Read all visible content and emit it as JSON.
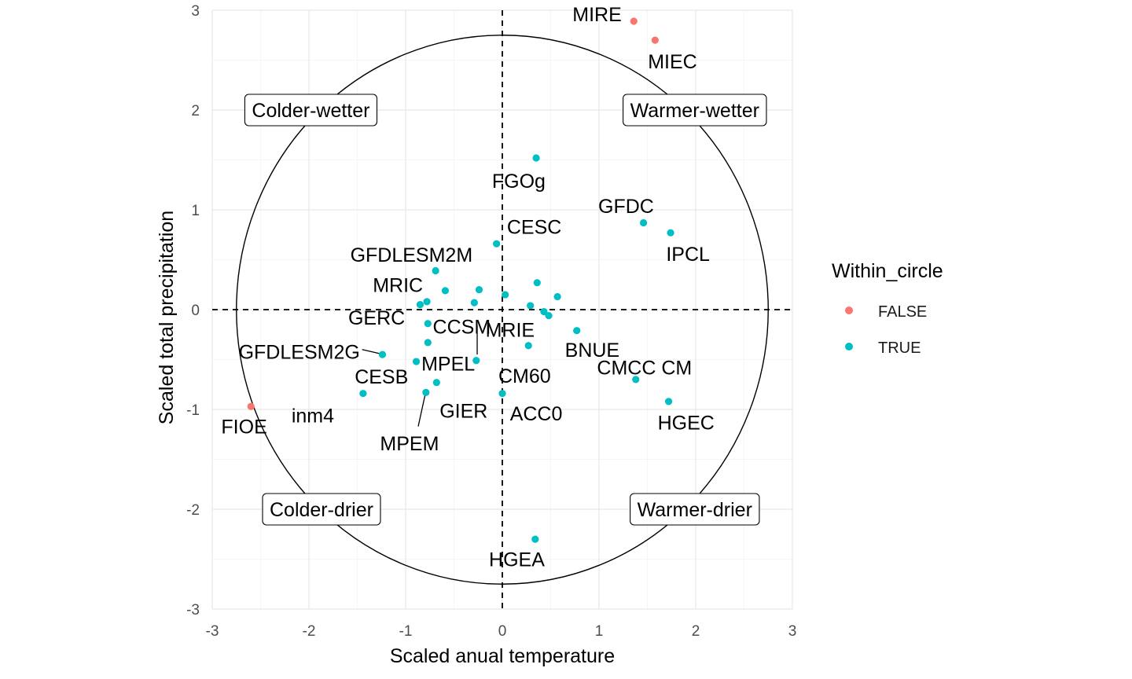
{
  "chart_data": {
    "type": "scatter",
    "xlabel": "Scaled anual temperature",
    "ylabel": "Scaled total precipitation",
    "xlim": [
      -3,
      3
    ],
    "ylim": [
      -3,
      3
    ],
    "x_ticks": [
      "-3",
      "-2",
      "-1",
      "0",
      "1",
      "2",
      "3"
    ],
    "y_ticks": [
      "-3",
      "-2",
      "-1",
      "0",
      "1",
      "2",
      "3"
    ],
    "grid": true,
    "circle_radius": 2.75,
    "reference_lines": [
      "x = 0 (dashed)",
      "y = 0 (dashed)"
    ],
    "quadrant_labels": [
      {
        "text": "Colder-wetter",
        "x": -1.98,
        "y": 2.0
      },
      {
        "text": "Warmer-wetter",
        "x": 1.99,
        "y": 2.0
      },
      {
        "text": "Colder-drier",
        "x": -1.87,
        "y": -2.0
      },
      {
        "text": "Warmer-drier",
        "x": 1.99,
        "y": -2.0
      }
    ],
    "legend": {
      "title": "Within_circle",
      "position": "right",
      "entries": [
        {
          "label": "FALSE",
          "color": "#F8766D"
        },
        {
          "label": "TRUE",
          "color": "#00BFC4"
        }
      ]
    },
    "series": [
      {
        "name": "FALSE",
        "color": "#F8766D",
        "points": [
          {
            "x": 1.36,
            "y": 2.89
          },
          {
            "x": 1.58,
            "y": 2.7
          },
          {
            "x": -2.6,
            "y": -0.97
          }
        ]
      },
      {
        "name": "TRUE",
        "color": "#00BFC4",
        "points": [
          {
            "x": 0.35,
            "y": 1.52
          },
          {
            "x": 1.46,
            "y": 0.87
          },
          {
            "x": 1.74,
            "y": 0.77
          },
          {
            "x": -0.06,
            "y": 0.66
          },
          {
            "x": -0.69,
            "y": 0.39
          },
          {
            "x": -0.59,
            "y": 0.19
          },
          {
            "x": -0.24,
            "y": 0.2
          },
          {
            "x": 0.36,
            "y": 0.27
          },
          {
            "x": 0.57,
            "y": 0.13
          },
          {
            "x": 0.03,
            "y": 0.15
          },
          {
            "x": -0.78,
            "y": 0.08
          },
          {
            "x": -0.85,
            "y": 0.05
          },
          {
            "x": -0.29,
            "y": 0.07
          },
          {
            "x": 0.29,
            "y": 0.04
          },
          {
            "x": 0.43,
            "y": -0.02
          },
          {
            "x": 0.48,
            "y": -0.06
          },
          {
            "x": -0.77,
            "y": -0.14
          },
          {
            "x": -0.77,
            "y": -0.33
          },
          {
            "x": 0.77,
            "y": -0.21
          },
          {
            "x": 0.27,
            "y": -0.36
          },
          {
            "x": -0.27,
            "y": -0.51
          },
          {
            "x": -1.24,
            "y": -0.45
          },
          {
            "x": -0.89,
            "y": -0.52
          },
          {
            "x": -1.44,
            "y": -0.84
          },
          {
            "x": -0.68,
            "y": -0.73
          },
          {
            "x": -0.79,
            "y": -0.83
          },
          {
            "x": 0.0,
            "y": -0.84
          },
          {
            "x": 1.38,
            "y": -0.7
          },
          {
            "x": 1.72,
            "y": -0.92
          },
          {
            "x": 0.34,
            "y": -2.3
          }
        ]
      }
    ],
    "labels": [
      {
        "text": "MIRE",
        "x": 0.98,
        "y": 2.96
      },
      {
        "text": "MIEC",
        "x": 1.76,
        "y": 2.49
      },
      {
        "text": "FIOE",
        "x": -2.67,
        "y": -1.17
      },
      {
        "text": "FGOg",
        "x": 0.17,
        "y": 1.29
      },
      {
        "text": "GFDC",
        "x": 1.28,
        "y": 1.04
      },
      {
        "text": "IPCL",
        "x": 1.92,
        "y": 0.56
      },
      {
        "text": "CESC",
        "x": 0.33,
        "y": 0.83
      },
      {
        "text": "GFDLESM2M",
        "x": -0.94,
        "y": 0.55
      },
      {
        "text": "MRIC",
        "x": -1.08,
        "y": 0.25
      },
      {
        "text": "GERC",
        "x": -1.3,
        "y": -0.08
      },
      {
        "text": "CCSM",
        "x": -0.42,
        "y": -0.17
      },
      {
        "text": "MRIE",
        "x": 0.08,
        "y": -0.2
      },
      {
        "text": "GFDLESM2G",
        "x": -2.1,
        "y": -0.42
      },
      {
        "text": "BNUE",
        "x": 0.93,
        "y": -0.4
      },
      {
        "text": "MPEL",
        "x": -0.56,
        "y": -0.54
      },
      {
        "text": "CMCC CM",
        "x": 1.47,
        "y": -0.58
      },
      {
        "text": "CESB",
        "x": -1.25,
        "y": -0.67
      },
      {
        "text": "CM60",
        "x": 0.23,
        "y": -0.66
      },
      {
        "text": "inm4",
        "x": -1.96,
        "y": -1.06
      },
      {
        "text": "GIER",
        "x": -0.4,
        "y": -1.01
      },
      {
        "text": "ACC0",
        "x": 0.35,
        "y": -1.04
      },
      {
        "text": "HGEC",
        "x": 1.9,
        "y": -1.13
      },
      {
        "text": "MPEM",
        "x": -0.96,
        "y": -1.34
      },
      {
        "text": "HGEA",
        "x": 0.15,
        "y": -2.5
      }
    ],
    "connectors": [
      {
        "from": [
          -1.45,
          -0.4
        ],
        "to": [
          -1.27,
          -0.44
        ]
      },
      {
        "from": [
          -0.26,
          -0.45
        ],
        "to": [
          -0.26,
          -0.16
        ]
      },
      {
        "from": [
          -0.87,
          -1.17
        ],
        "to": [
          -0.8,
          -0.86
        ]
      }
    ]
  }
}
